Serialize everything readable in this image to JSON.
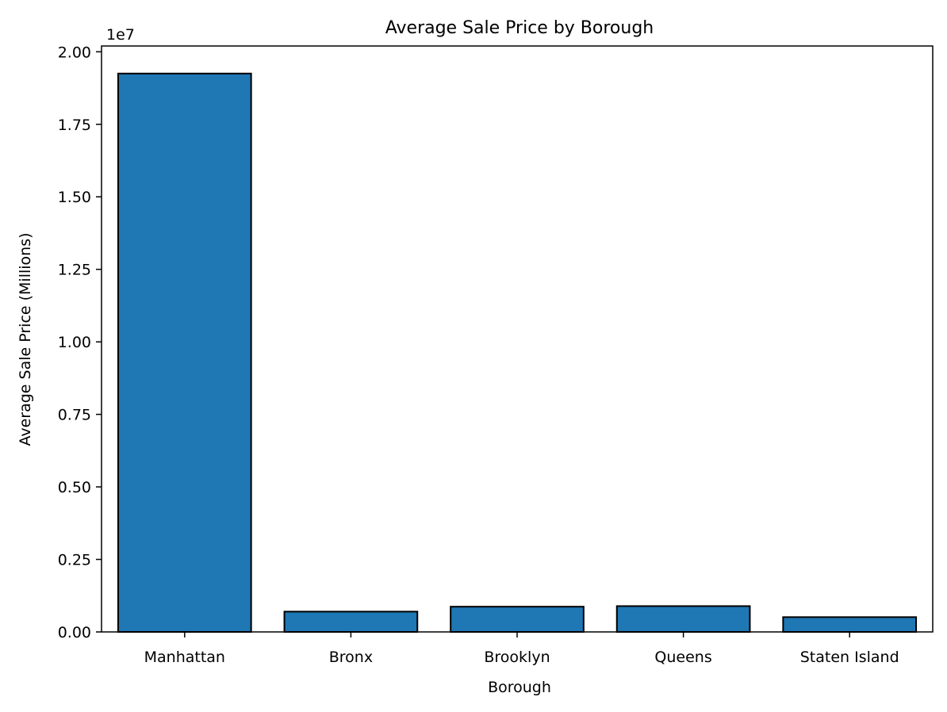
{
  "chart_data": {
    "type": "bar",
    "title": "Average Sale Price by Borough",
    "xlabel": "Borough",
    "ylabel": "Average Sale Price (Millions)",
    "y_offset_label": "1e7",
    "categories": [
      "Manhattan",
      "Bronx",
      "Brooklyn",
      "Queens",
      "Staten Island"
    ],
    "values": [
      19250000,
      700000,
      870000,
      890000,
      510000
    ],
    "ylim": [
      0,
      20200000
    ],
    "y_ticks": [
      {
        "value": 0,
        "label": "0.00"
      },
      {
        "value": 2500000,
        "label": "0.25"
      },
      {
        "value": 5000000,
        "label": "0.50"
      },
      {
        "value": 7500000,
        "label": "0.75"
      },
      {
        "value": 10000000,
        "label": "1.00"
      },
      {
        "value": 12500000,
        "label": "1.25"
      },
      {
        "value": 15000000,
        "label": "1.50"
      },
      {
        "value": 17500000,
        "label": "1.75"
      },
      {
        "value": 20000000,
        "label": "2.00"
      }
    ],
    "grid": false,
    "bar_color": "#1f77b4",
    "edge_color": "#000000"
  }
}
